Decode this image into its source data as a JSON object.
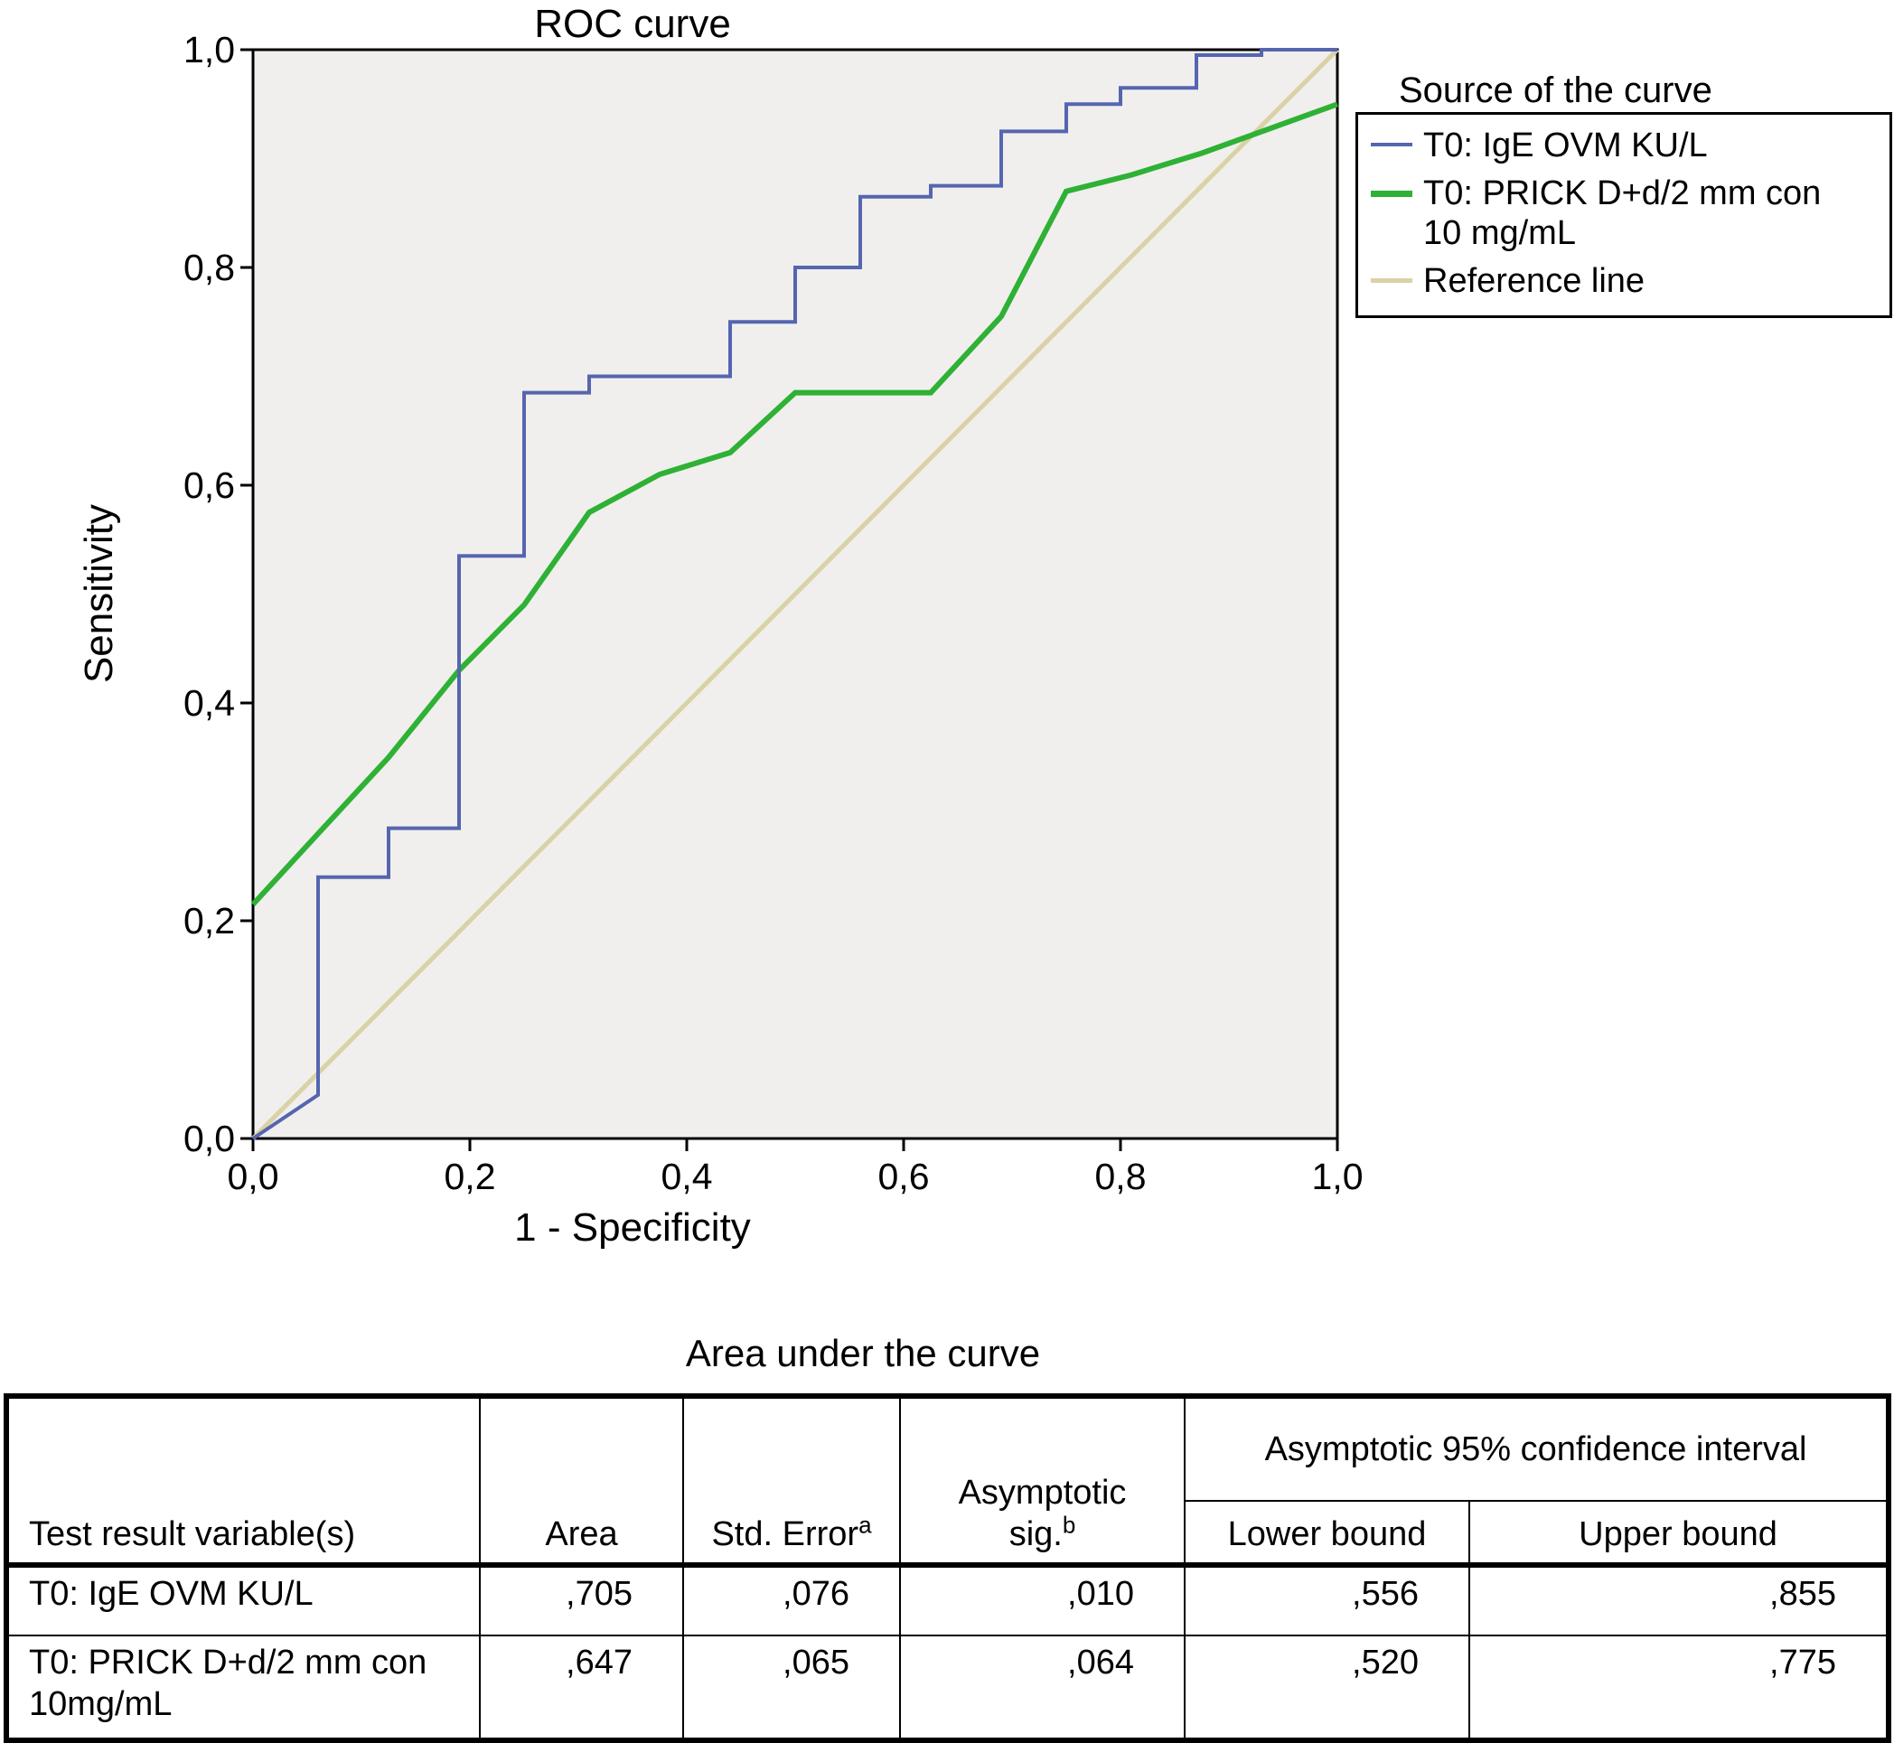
{
  "chart": {
    "title": "ROC curve",
    "xlabel": "1 - Specificity",
    "ylabel": "Sensitivity",
    "x_ticks": [
      "0,0",
      "0,2",
      "0,4",
      "0,6",
      "0,8",
      "1,0"
    ],
    "y_ticks": [
      "0,0",
      "0,2",
      "0,4",
      "0,6",
      "0,8",
      "1,0"
    ],
    "plot_bg": "#f0efed",
    "frame_color": "#000000"
  },
  "legend": {
    "title": "Source of the curve",
    "entries": [
      {
        "id": "ige",
        "label": "T0: IgE OVM KU/L",
        "color": "#5565b0",
        "thickness": 4
      },
      {
        "id": "prick",
        "label": "T0: PRICK D+d/2 mm con 10 mg/mL",
        "color": "#2eb135",
        "thickness": 7
      },
      {
        "id": "reference",
        "label": "Reference line",
        "color": "#d9d2a6",
        "thickness": 5
      }
    ]
  },
  "chart_data": {
    "type": "line",
    "title": "ROC curve",
    "xlabel": "1 - Specificity",
    "ylabel": "Sensitivity",
    "xlim": [
      0,
      1
    ],
    "ylim": [
      0,
      1
    ],
    "x_tick_values": [
      0,
      0.2,
      0.4,
      0.6,
      0.8,
      1.0
    ],
    "y_tick_values": [
      0,
      0.2,
      0.4,
      0.6,
      0.8,
      1.0
    ],
    "grid": false,
    "legend_position": "outside-upper-right",
    "series": [
      {
        "id": "ige",
        "name": "T0: IgE OVM KU/L",
        "color": "#5565b0",
        "width": 4,
        "points": [
          [
            0,
            0
          ],
          [
            0.06,
            0.04
          ],
          [
            0.06,
            0.24
          ],
          [
            0.125,
            0.24
          ],
          [
            0.125,
            0.285
          ],
          [
            0.19,
            0.285
          ],
          [
            0.19,
            0.535
          ],
          [
            0.25,
            0.535
          ],
          [
            0.25,
            0.685
          ],
          [
            0.31,
            0.685
          ],
          [
            0.31,
            0.7
          ],
          [
            0.44,
            0.7
          ],
          [
            0.44,
            0.75
          ],
          [
            0.5,
            0.75
          ],
          [
            0.5,
            0.8
          ],
          [
            0.56,
            0.8
          ],
          [
            0.56,
            0.865
          ],
          [
            0.625,
            0.865
          ],
          [
            0.625,
            0.875
          ],
          [
            0.69,
            0.875
          ],
          [
            0.69,
            0.925
          ],
          [
            0.75,
            0.925
          ],
          [
            0.75,
            0.95
          ],
          [
            0.8,
            0.95
          ],
          [
            0.8,
            0.965
          ],
          [
            0.87,
            0.965
          ],
          [
            0.87,
            0.995
          ],
          [
            0.93,
            0.995
          ],
          [
            0.93,
            1.0
          ],
          [
            1,
            1
          ]
        ]
      },
      {
        "id": "prick",
        "name": "T0: PRICK D+d/2 mm con 10 mg/mL",
        "color": "#2eb135",
        "width": 6,
        "points": [
          [
            0,
            0.215
          ],
          [
            0.06,
            0.28
          ],
          [
            0.125,
            0.35
          ],
          [
            0.19,
            0.43
          ],
          [
            0.25,
            0.49
          ],
          [
            0.31,
            0.575
          ],
          [
            0.375,
            0.61
          ],
          [
            0.44,
            0.63
          ],
          [
            0.5,
            0.685
          ],
          [
            0.625,
            0.685
          ],
          [
            0.69,
            0.755
          ],
          [
            0.75,
            0.87
          ],
          [
            0.81,
            0.885
          ],
          [
            0.875,
            0.905
          ],
          [
            1,
            0.95
          ]
        ]
      },
      {
        "id": "reference",
        "name": "Reference line",
        "color": "#d9d2a6",
        "width": 5,
        "points": [
          [
            0,
            0
          ],
          [
            1,
            1
          ]
        ]
      }
    ]
  },
  "table": {
    "title": "Area under the curve",
    "group_header": "Asymptotic 95% confidence interval",
    "headers": {
      "variable": "Test result variable(s)",
      "area": "Area",
      "std_error": "Std. Error",
      "std_error_sup": "a",
      "sig_line1": "Asymptotic",
      "sig_line2": "sig.",
      "sig_sup": "b",
      "lower": "Lower bound",
      "upper": "Upper bound"
    },
    "rows": [
      {
        "variable": "T0: IgE OVM KU/L",
        "area": ",705",
        "std_error": ",076",
        "sig": ",010",
        "lower": ",556",
        "upper": ",855"
      },
      {
        "variable": "T0: PRICK D+d/2 mm con 10mg/mL",
        "area": ",647",
        "std_error": ",065",
        "sig": ",064",
        "lower": ",520",
        "upper": ",775"
      }
    ]
  }
}
